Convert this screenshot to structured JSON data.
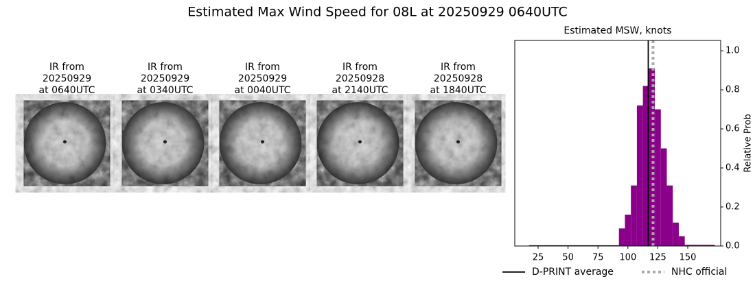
{
  "title": "Estimated Max Wind Speed for 08L at 20250929 0640UTC",
  "panels": [
    {
      "lines": [
        "IR from",
        "20250929",
        "at 0640UTC"
      ]
    },
    {
      "lines": [
        "IR from",
        "20250929",
        "at 0340UTC"
      ]
    },
    {
      "lines": [
        "IR from",
        "20250929",
        "at 0040UTC"
      ]
    },
    {
      "lines": [
        "IR from",
        "20250928",
        "at 2140UTC"
      ]
    },
    {
      "lines": [
        "IR from",
        "20250928",
        "at 1840UTC"
      ]
    }
  ],
  "chart_data": {
    "type": "histogram",
    "title": "Estimated MSW, knots",
    "ylabel": "Relative Prob",
    "bins": [
      17.5,
      22.5,
      27.5,
      32.5,
      37.5,
      42.5,
      47.5,
      52.5,
      57.5,
      62.5,
      67.5,
      72.5,
      77.5,
      82.5,
      87.5,
      92.5,
      97.5,
      102.5,
      107.5,
      112.5,
      117.5,
      122.5,
      127.5,
      132.5,
      137.5,
      142.5,
      147.5,
      152.5,
      157.5,
      162.5,
      167.5,
      172.5
    ],
    "values": [
      0.004,
      0.004,
      0.004,
      0.004,
      0.004,
      0.004,
      0.004,
      0.004,
      0.004,
      0.004,
      0.004,
      0.004,
      0.004,
      0.004,
      0.004,
      0.09,
      0.16,
      0.31,
      0.72,
      0.82,
      0.91,
      0.7,
      0.5,
      0.31,
      0.12,
      0.05,
      0.006,
      0.006,
      0.006,
      0.006,
      0.006
    ],
    "color": "#8b008b",
    "xlim": [
      5.5,
      177.5
    ],
    "xticks": [
      25,
      50,
      75,
      100,
      125,
      150
    ],
    "ylim": [
      0,
      1.053
    ],
    "yticks": [
      {
        "value": 0,
        "label": "0.0"
      },
      0.2,
      0.4,
      0.6,
      0.8,
      {
        "value": 1,
        "label": "1.0"
      }
    ],
    "vlines": [
      {
        "name": "D-PRINT average",
        "x": 117,
        "color": "#000000",
        "style": "solid"
      },
      {
        "name": "NHC official",
        "x": 121,
        "color": "#aaaaaa",
        "style": "dotted"
      }
    ]
  }
}
